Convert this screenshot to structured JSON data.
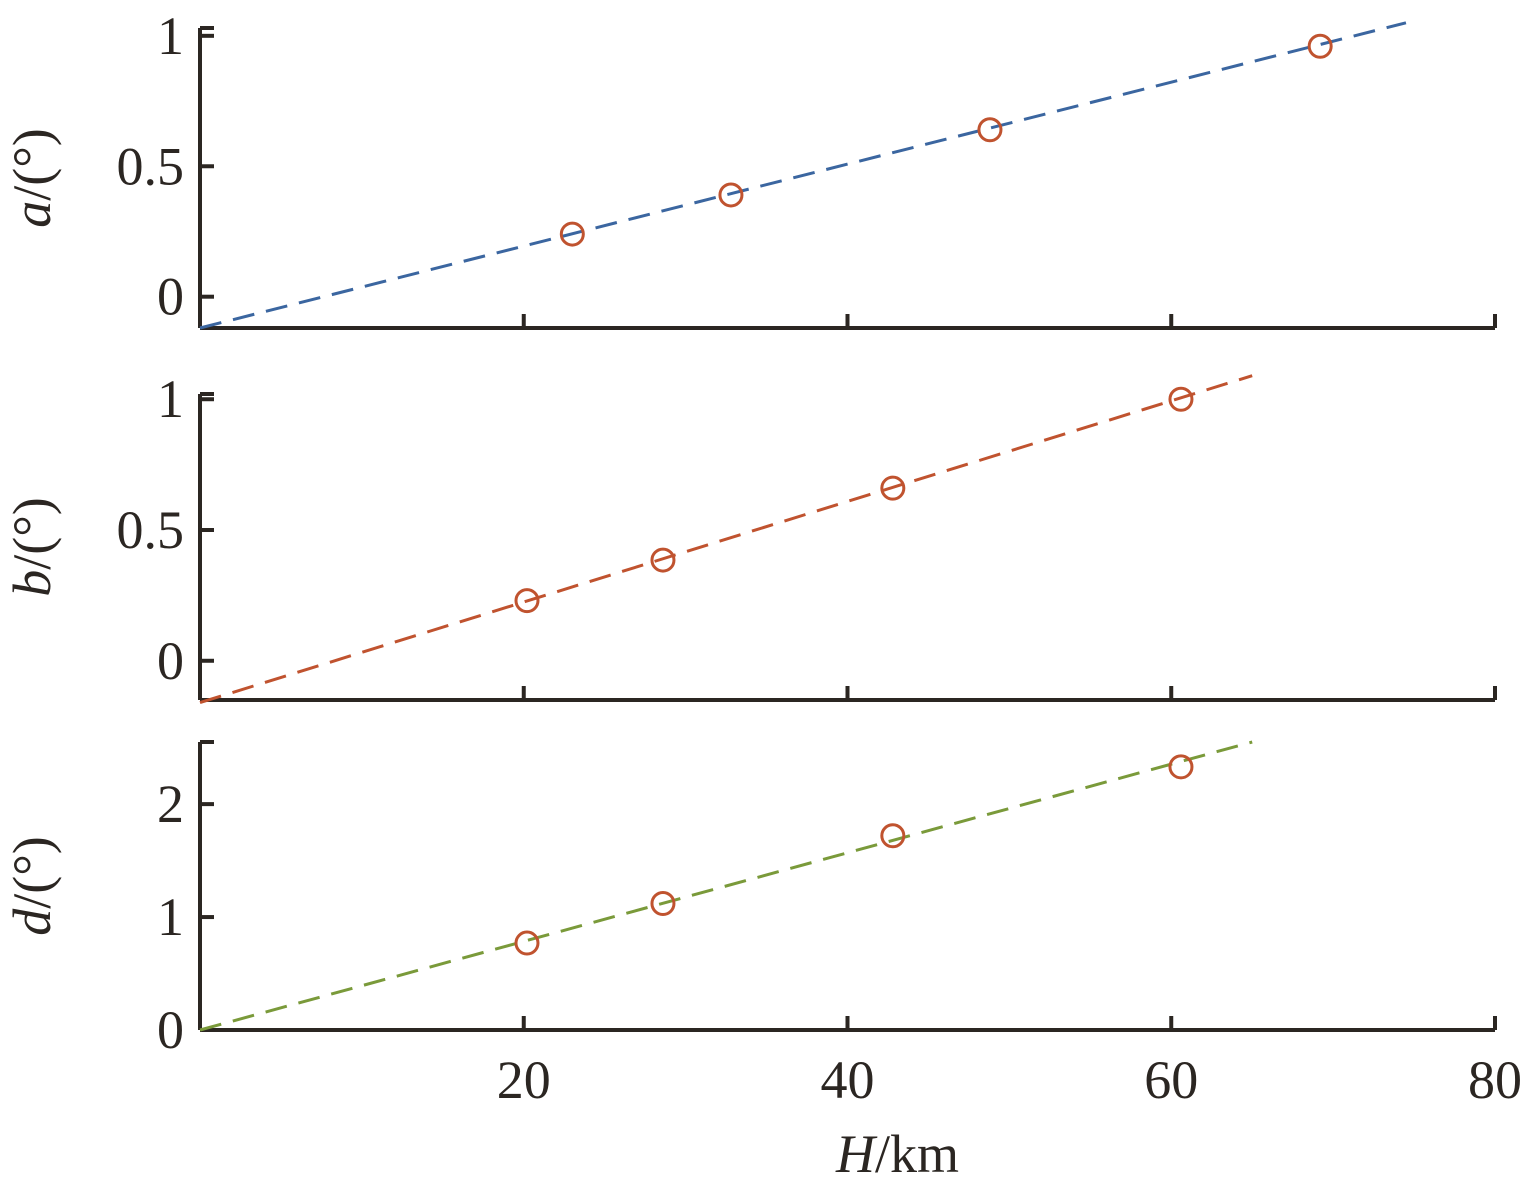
{
  "chart_data": [
    {
      "type": "scatter",
      "ylabel_var": "a",
      "ylabel_unit": "/(°)",
      "xlim": [
        0,
        80
      ],
      "ylim": [
        -0.12,
        1.03
      ],
      "yticks": [
        0,
        0.5,
        1
      ],
      "ytick_labels": [
        "0",
        "0.5",
        "1"
      ],
      "marker_color": "#c0532f",
      "fit_color": "#3b66a0",
      "points": {
        "x": [
          23,
          32.8,
          48.8,
          69.2
        ],
        "y": [
          0.24,
          0.39,
          0.64,
          0.96
        ]
      },
      "fit_line": {
        "x": [
          0,
          74.5
        ],
        "y": [
          -0.12,
          1.05
        ]
      }
    },
    {
      "type": "scatter",
      "ylabel_var": "b",
      "ylabel_unit": "/(°)",
      "xlim": [
        0,
        80
      ],
      "ylim": [
        -0.15,
        1.02
      ],
      "yticks": [
        0,
        0.5,
        1
      ],
      "ytick_labels": [
        "0",
        "0.5",
        "1"
      ],
      "marker_color": "#c0532f",
      "fit_color": "#c0532f",
      "points": {
        "x": [
          20.2,
          28.6,
          42.8,
          60.6
        ],
        "y": [
          0.23,
          0.385,
          0.66,
          1.0
        ]
      },
      "fit_line": {
        "x": [
          0,
          65
        ],
        "y": [
          -0.16,
          1.09
        ]
      }
    },
    {
      "type": "scatter",
      "ylabel_var": "d",
      "ylabel_unit": "/(°)",
      "xlim": [
        0,
        80
      ],
      "ylim": [
        0,
        2.55
      ],
      "yticks": [
        0,
        1,
        2
      ],
      "ytick_labels": [
        "0",
        "1",
        "2"
      ],
      "marker_color": "#c0532f",
      "fit_color": "#7a9a3a",
      "points": {
        "x": [
          20.2,
          28.6,
          42.8,
          60.6
        ],
        "y": [
          0.77,
          1.12,
          1.72,
          2.33
        ]
      },
      "fit_line": {
        "x": [
          0,
          65
        ],
        "y": [
          0,
          2.55
        ]
      },
      "xticks": [
        20,
        40,
        60,
        80
      ],
      "xtick_labels": [
        "20",
        "40",
        "60",
        "80"
      ],
      "xlabel_var": "H",
      "xlabel_unit": "/km"
    }
  ]
}
